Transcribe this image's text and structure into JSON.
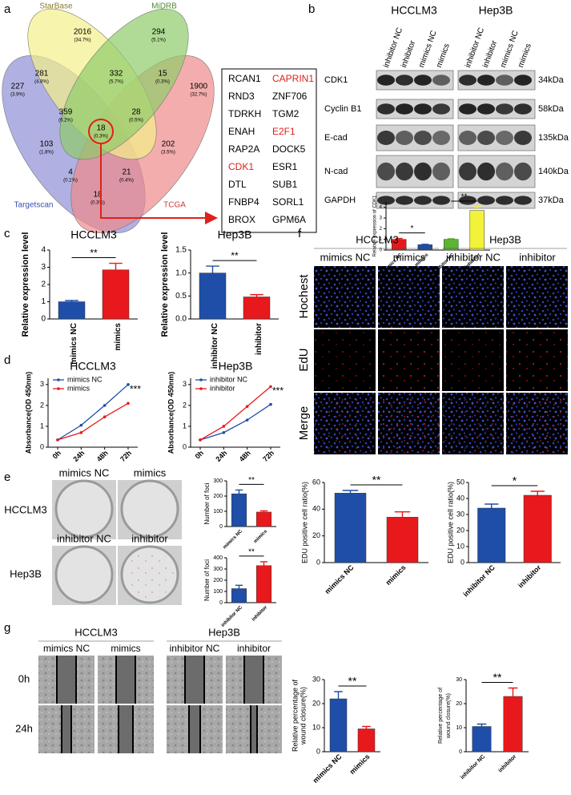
{
  "panels": [
    "a",
    "b",
    "c",
    "d",
    "e",
    "f",
    "g"
  ],
  "venn": {
    "sets": [
      "StarBase",
      "MiDRB",
      "Targetscan",
      "TCGA"
    ],
    "regions": [
      {
        "count": "2016",
        "percent": "(34.7%)"
      },
      {
        "count": "294",
        "percent": "(5.1%)"
      },
      {
        "count": "281",
        "percent": "(4.8%)"
      },
      {
        "count": "332",
        "percent": "(5.7%)"
      },
      {
        "count": "15",
        "percent": "(0.3%)"
      },
      {
        "count": "227",
        "percent": "(3.9%)"
      },
      {
        "count": "359",
        "percent": "(6.2%)"
      },
      {
        "count": "28",
        "percent": "(0.5%)"
      },
      {
        "count": "1900",
        "percent": "(32.7%)"
      },
      {
        "count": "103",
        "percent": "(1.8%)"
      },
      {
        "count": "18",
        "percent": "(0.3%)"
      },
      {
        "count": "202",
        "percent": "(3.5%)"
      },
      {
        "count": "4",
        "percent": "(0.1%)"
      },
      {
        "count": "21",
        "percent": "(0.4%)"
      },
      {
        "count": "18",
        "percent": "(0.3%)"
      }
    ]
  },
  "gene_list": {
    "genes": [
      {
        "name": "RCAN1",
        "color": "#000000"
      },
      {
        "name": "CAPRIN1",
        "color": "#e0201b"
      },
      {
        "name": "RND3",
        "color": "#000000"
      },
      {
        "name": "ZNF706",
        "color": "#000000"
      },
      {
        "name": "TDRKH",
        "color": "#000000"
      },
      {
        "name": "TGM2",
        "color": "#000000"
      },
      {
        "name": "ENAH",
        "color": "#000000"
      },
      {
        "name": "E2F1",
        "color": "#e0201b"
      },
      {
        "name": "RAP2A",
        "color": "#000000"
      },
      {
        "name": "DOCK5",
        "color": "#000000"
      },
      {
        "name": "CDK1",
        "color": "#e0201b"
      },
      {
        "name": "ESR1",
        "color": "#000000"
      },
      {
        "name": "DTL",
        "color": "#000000"
      },
      {
        "name": "SUB1",
        "color": "#000000"
      },
      {
        "name": "FNBP4",
        "color": "#000000"
      },
      {
        "name": "SORL1",
        "color": "#000000"
      },
      {
        "name": "BROX",
        "color": "#000000"
      },
      {
        "name": "GPM6A",
        "color": "#000000"
      }
    ]
  },
  "blots": {
    "cell_lines": [
      "HCCLM3",
      "Hep3B"
    ],
    "lanes": [
      "inhibitor NC",
      "inhibitor",
      "mimics NC",
      "mimics"
    ],
    "proteins": [
      {
        "name": "CDK1",
        "size": "34kDa"
      },
      {
        "name": "Cyclin B1",
        "size": "58kDa"
      },
      {
        "name": "E-cad",
        "size": "135kDa"
      },
      {
        "name": "N-cad",
        "size": "140kDa"
      },
      {
        "name": "GAPDH",
        "size": "37kDa"
      }
    ]
  },
  "colony": {
    "cell_lines": [
      "HCCLM3",
      "Hep3B"
    ],
    "conditions": [
      "mimics NC",
      "mimics",
      "inhibitor NC",
      "inhibitor"
    ]
  },
  "edu": {
    "cell_lines": [
      "HCCLM3",
      "Hep3B"
    ],
    "conditions": [
      "mimics NC",
      "mimics",
      "inhibitor NC",
      "inhibitor"
    ],
    "stains": [
      "Hochest",
      "EdU",
      "Merge"
    ]
  },
  "wound": {
    "cell_lines": [
      "HCCLM3",
      "Hep3B"
    ],
    "conditions": [
      "mimics NC",
      "mimics",
      "inhibitor NC",
      "inhibitor"
    ],
    "times": [
      "0h",
      "24h"
    ]
  },
  "chart_data": [
    {
      "type": "bar",
      "ylabel": "Relative expression of CDK1",
      "categories": [
        "mimics NC",
        "mimics",
        "inhibitor NC",
        "inhibitor"
      ],
      "values": [
        1.0,
        0.5,
        1.0,
        3.7
      ],
      "errors": [
        0.08,
        0.04,
        0.05,
        0.35
      ],
      "colors": [
        "#e8191c",
        "#1f4ea8",
        "#5cb531",
        "#f2f23a"
      ],
      "groups": [
        "HCCLM3",
        "Hep3B"
      ],
      "significance": [
        "*",
        "**"
      ],
      "ylim": [
        0,
        4.5
      ],
      "yticks": [
        0,
        1,
        2,
        3,
        4
      ]
    },
    {
      "type": "bar",
      "title": "HCCLM3",
      "ylabel": "Relative expression level",
      "categories": [
        "mimics NC",
        "mimics"
      ],
      "values": [
        1.0,
        2.85
      ],
      "errors": [
        0.07,
        0.38
      ],
      "colors": [
        "#1f4ea8",
        "#e8191c"
      ],
      "significance": [
        "**"
      ],
      "ylim": [
        0,
        4
      ],
      "yticks": [
        0,
        1,
        2,
        3,
        4
      ]
    },
    {
      "type": "bar",
      "title": "Hep3B",
      "ylabel": "Relative expression level",
      "categories": [
        "inhibitor NC",
        "inhibitor"
      ],
      "values": [
        1.0,
        0.48
      ],
      "errors": [
        0.15,
        0.05
      ],
      "colors": [
        "#1f4ea8",
        "#e8191c"
      ],
      "significance": [
        "**"
      ],
      "ylim": [
        0,
        1.5
      ],
      "yticks": [
        {
          "value": 0,
          "label": "0.0"
        },
        0.5,
        {
          "value": 1,
          "label": "1.0"
        },
        1.5
      ]
    },
    {
      "type": "line",
      "title": "HCCLM3",
      "ylabel": "Absorbance(OD 450nm)",
      "categories": [
        "0h",
        "24h",
        "48h",
        "72h"
      ],
      "series": [
        {
          "name": "mimics NC",
          "color": "#1f4ea8",
          "values": [
            0.35,
            1.05,
            2.0,
            3.0
          ]
        },
        {
          "name": "mimics",
          "color": "#e8191c",
          "values": [
            0.35,
            0.7,
            1.45,
            2.1
          ]
        }
      ],
      "significance": [
        "***"
      ],
      "legend": "upper left",
      "ylim": [
        0,
        3.3
      ],
      "yticks": [
        0,
        1,
        2,
        3
      ]
    },
    {
      "type": "line",
      "title": "Hep3B",
      "ylabel": "Absorbance(OD 450nm)",
      "categories": [
        "0h",
        "24h",
        "48h",
        "72h"
      ],
      "series": [
        {
          "name": "inhibitor NC",
          "color": "#1f4ea8",
          "values": [
            0.35,
            0.7,
            1.3,
            2.05
          ]
        },
        {
          "name": "inhibitor",
          "color": "#e8191c",
          "values": [
            0.35,
            1.0,
            1.95,
            2.9
          ]
        }
      ],
      "significance": [
        "***"
      ],
      "legend": "upper left",
      "ylim": [
        0,
        3.3
      ],
      "yticks": [
        0,
        1,
        2,
        3
      ]
    },
    {
      "type": "bar",
      "ylabel": "Number of foci",
      "categories": [
        "mimics NC",
        "mimics"
      ],
      "values": [
        215,
        95
      ],
      "errors": [
        25,
        8
      ],
      "colors": [
        "#1f4ea8",
        "#e8191c"
      ],
      "significance": [
        "**"
      ],
      "ylim": [
        0,
        300
      ],
      "yticks": [
        0,
        100,
        200,
        300
      ]
    },
    {
      "type": "bar",
      "ylabel": "Number of foci",
      "categories": [
        "inhibitor NC",
        "inhibitor"
      ],
      "values": [
        125,
        330
      ],
      "errors": [
        30,
        35
      ],
      "colors": [
        "#1f4ea8",
        "#e8191c"
      ],
      "significance": [
        "**"
      ],
      "ylim": [
        0,
        400
      ],
      "yticks": [
        0,
        100,
        200,
        300,
        400
      ]
    },
    {
      "type": "bar",
      "ylabel": "EDU positive cell ratio(%)",
      "categories": [
        "mimics NC",
        "mimics"
      ],
      "values": [
        52,
        34
      ],
      "errors": [
        2,
        4
      ],
      "colors": [
        "#1f4ea8",
        "#e8191c"
      ],
      "significance": [
        "**"
      ],
      "ylim": [
        0,
        60
      ],
      "yticks": [
        0,
        20,
        40,
        60
      ]
    },
    {
      "type": "bar",
      "ylabel": "EDU positive cell ratio(%)",
      "categories": [
        "inhibitor NC",
        "inhibitor"
      ],
      "values": [
        34,
        42
      ],
      "errors": [
        2.5,
        2.5
      ],
      "colors": [
        "#1f4ea8",
        "#e8191c"
      ],
      "significance": [
        "*"
      ],
      "ylim": [
        0,
        50
      ],
      "yticks": [
        0,
        10,
        20,
        30,
        40,
        50
      ]
    },
    {
      "type": "bar",
      "ylabel": [
        "Relative percentage of",
        "wound closure(%)"
      ],
      "categories": [
        "mimics NC",
        "mimics"
      ],
      "values": [
        22,
        9.5
      ],
      "errors": [
        3,
        1
      ],
      "colors": [
        "#1f4ea8",
        "#e8191c"
      ],
      "significance": [
        "**"
      ],
      "ylim": [
        0,
        30
      ],
      "yticks": [
        0,
        10,
        20,
        30
      ]
    },
    {
      "type": "bar",
      "ylabel": [
        "Relative percentage of",
        "wound closure(%)"
      ],
      "categories": [
        "inhibitor NC",
        "inhibitor"
      ],
      "values": [
        10.5,
        23
      ],
      "errors": [
        1,
        3.5
      ],
      "colors": [
        "#1f4ea8",
        "#e8191c"
      ],
      "significance": [
        "**"
      ],
      "ylim": [
        0,
        30
      ],
      "yticks": [
        0,
        10,
        20,
        30
      ]
    }
  ]
}
